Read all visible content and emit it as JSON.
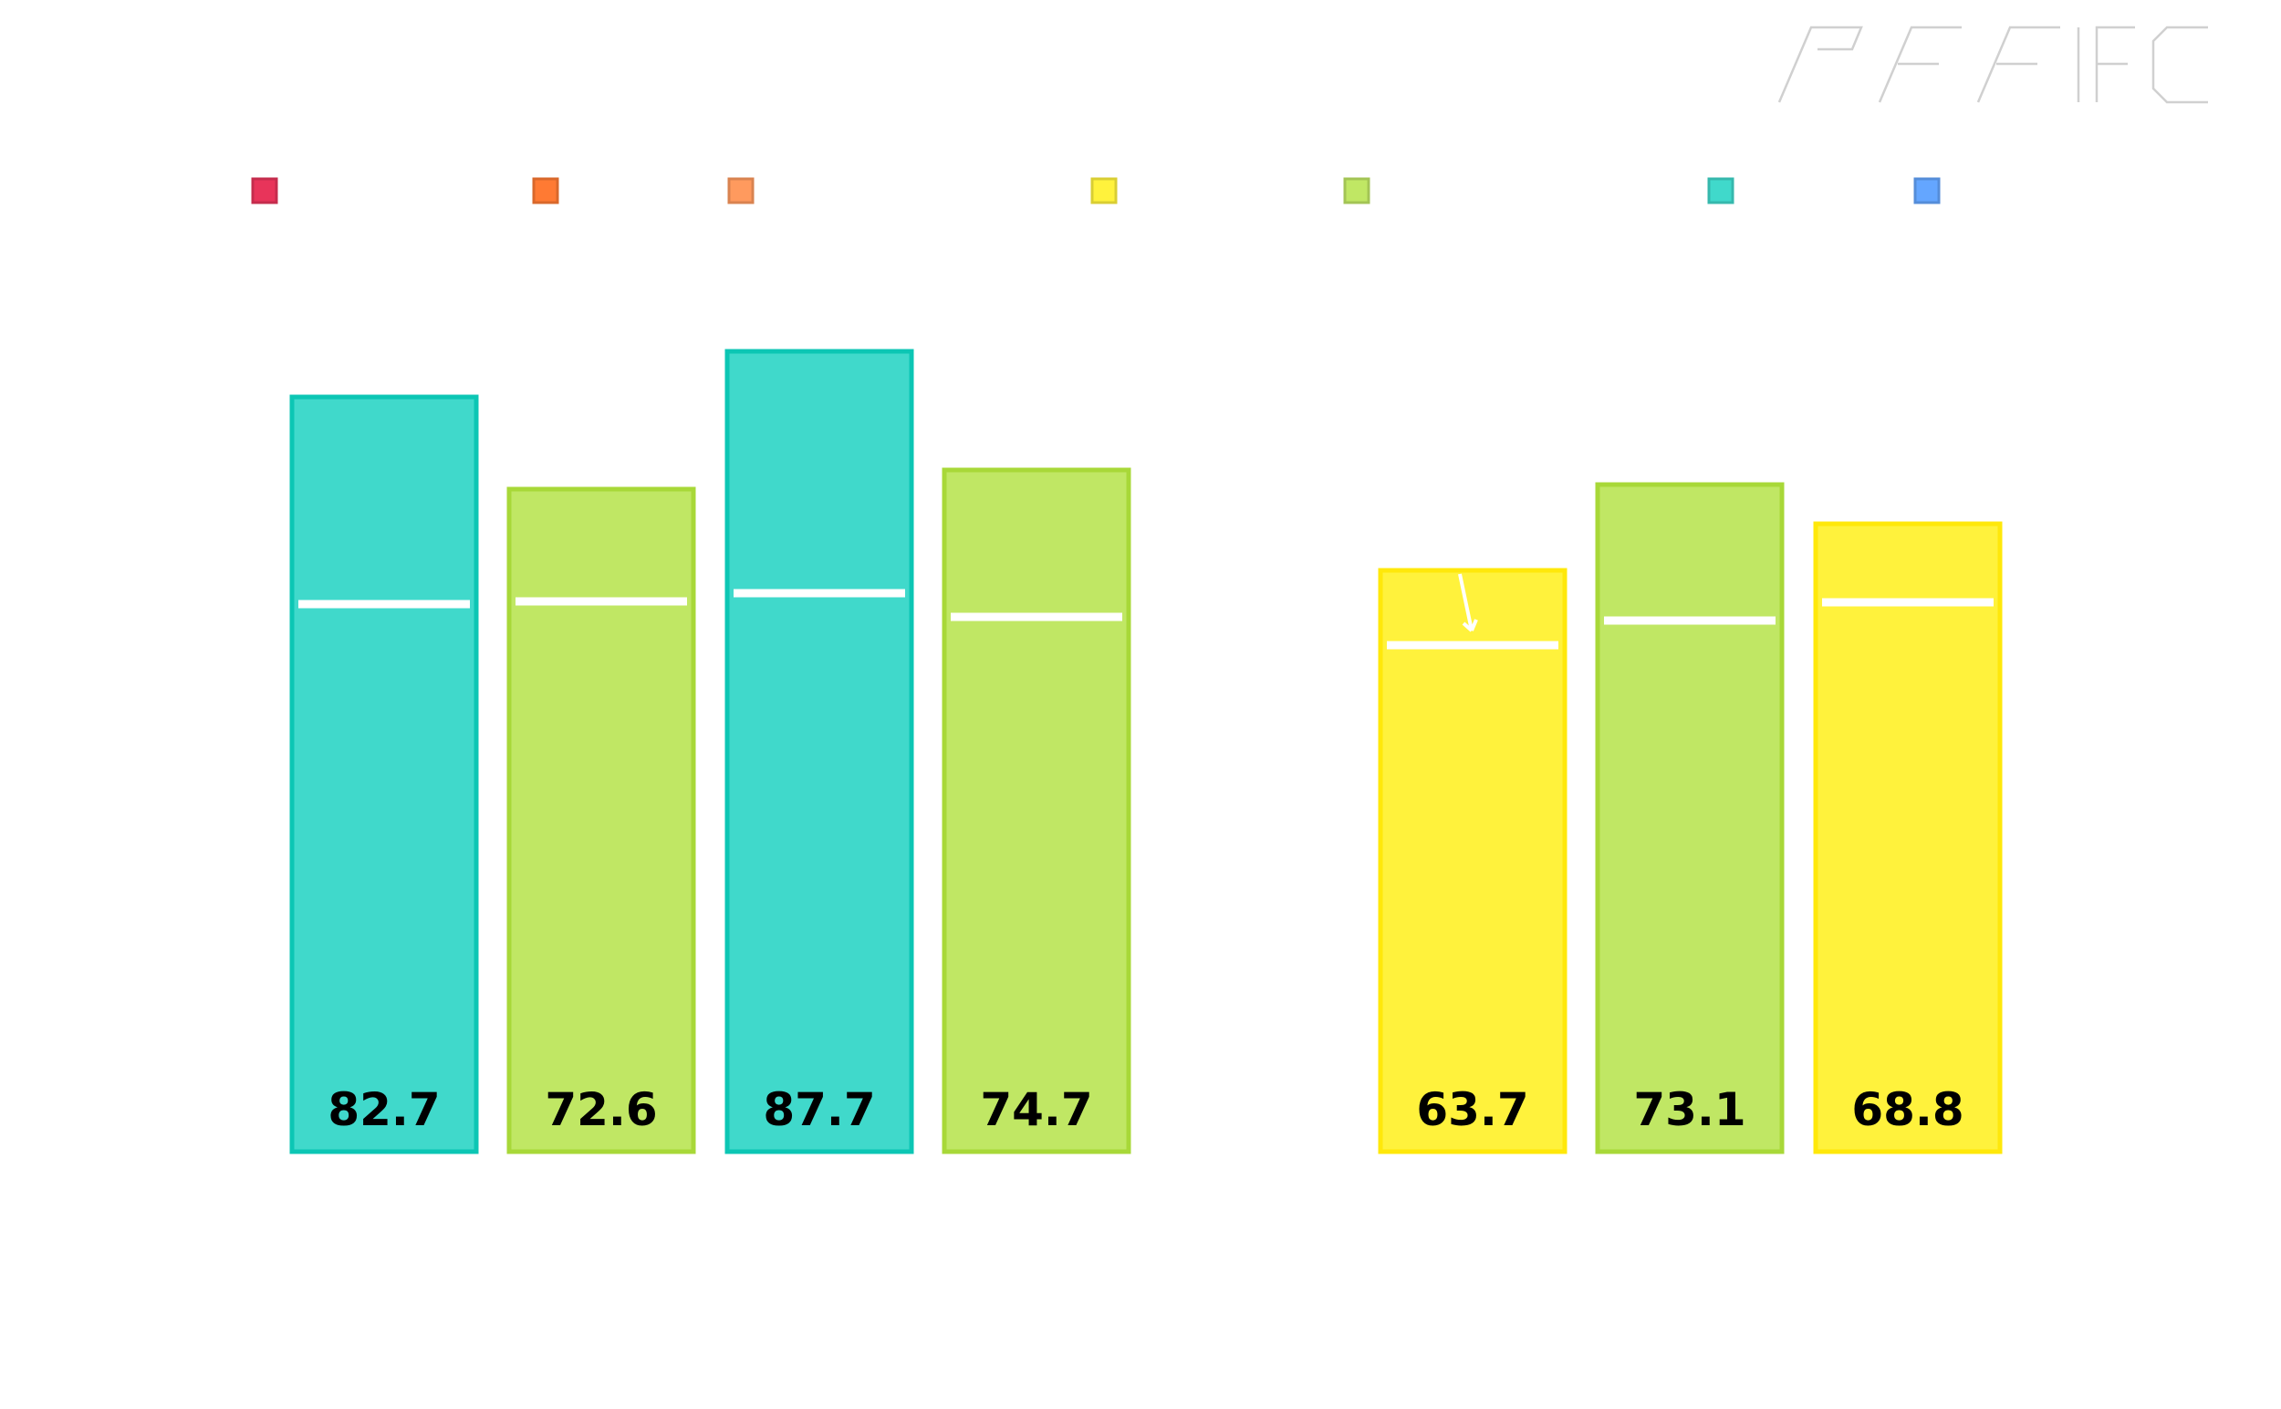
{
  "chart_data": {
    "type": "bar",
    "title": "",
    "xlabel": "",
    "ylabel": "",
    "ylim": [
      0,
      100
    ],
    "grid": false,
    "legend": {
      "placement": "top",
      "items": [
        {
          "color": "#e8345a"
        },
        {
          "color": "#ff7a33"
        },
        {
          "color": "#ff9a5e"
        },
        {
          "color": "#fff23c"
        },
        {
          "color": "#c0e764"
        },
        {
          "color": "#40d9cb"
        },
        {
          "color": "#64a6ff"
        }
      ]
    },
    "bars": [
      {
        "group": 1,
        "value": 82.7,
        "label": "82.7",
        "marker": 60.0,
        "color": "#40d9cb",
        "border": "#0cc6b4"
      },
      {
        "group": 1,
        "value": 72.6,
        "label": "72.6",
        "marker": 60.3,
        "color": "#c0e764",
        "border": "#a8d838"
      },
      {
        "group": 1,
        "value": 87.7,
        "label": "87.7",
        "marker": 61.2,
        "color": "#40d9cb",
        "border": "#0cc6b4"
      },
      {
        "group": 1,
        "value": 74.7,
        "label": "74.7",
        "marker": 58.6,
        "color": "#c0e764",
        "border": "#a8d838"
      },
      {
        "group": 2,
        "value": 63.7,
        "label": "63.7",
        "marker": 55.5,
        "color": "#fff23c",
        "border": "#ffe80a",
        "arrow": true
      },
      {
        "group": 2,
        "value": 73.1,
        "label": "73.1",
        "marker": 58.2,
        "color": "#c0e764",
        "border": "#a8d838"
      },
      {
        "group": 2,
        "value": 68.8,
        "label": "68.8",
        "marker": 60.2,
        "color": "#fff23c",
        "border": "#ffe80a"
      }
    ]
  },
  "logo": {
    "name": "pff-fc-logo"
  }
}
